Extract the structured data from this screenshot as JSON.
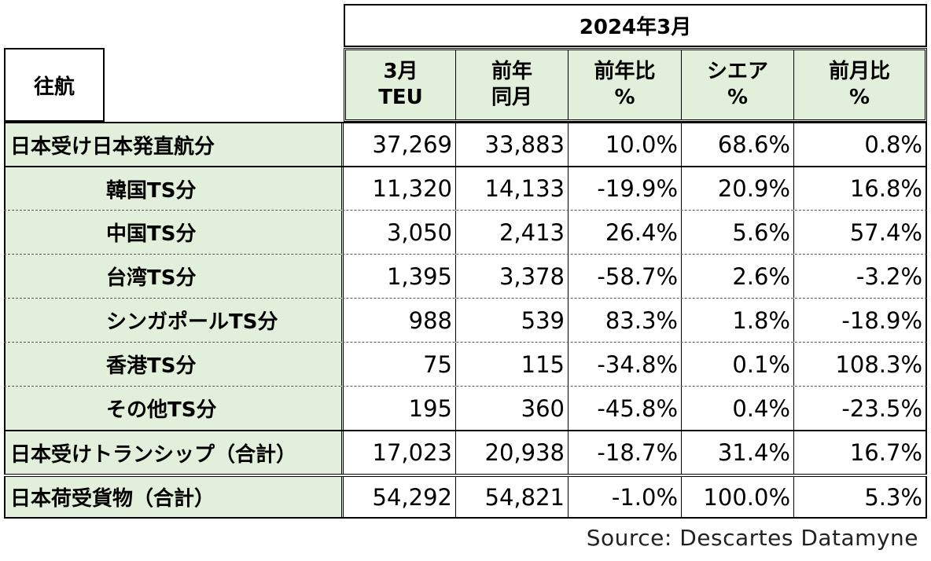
{
  "period": "2024年3月",
  "route_label": "往航",
  "headers": [
    {
      "line1": "3月",
      "line2": "TEU"
    },
    {
      "line1": "前年",
      "line2": "同月"
    },
    {
      "line1": "前年比",
      "line2": "%"
    },
    {
      "line1": "シエア",
      "line2": "%"
    },
    {
      "line1": "前月比",
      "line2": "%"
    }
  ],
  "rows": [
    {
      "label": "日本受け日本発直航分",
      "v": [
        "37,269",
        "33,883",
        "10.0%",
        "68.6%",
        "0.8%"
      ]
    },
    {
      "label": "韓国TS分",
      "v": [
        "11,320",
        "14,133",
        "-19.9%",
        "20.9%",
        "16.8%"
      ]
    },
    {
      "label": "中国TS分",
      "v": [
        "3,050",
        "2,413",
        "26.4%",
        "5.6%",
        "57.4%"
      ]
    },
    {
      "label": "台湾TS分",
      "v": [
        "1,395",
        "3,378",
        "-58.7%",
        "2.6%",
        "-3.2%"
      ]
    },
    {
      "label": "シンガポールTS分",
      "v": [
        "988",
        "539",
        "83.3%",
        "1.8%",
        "-18.9%"
      ]
    },
    {
      "label": "香港TS分",
      "v": [
        "75",
        "115",
        "-34.8%",
        "0.1%",
        "108.3%"
      ]
    },
    {
      "label": "その他TS分",
      "v": [
        "195",
        "360",
        "-45.8%",
        "0.4%",
        "-23.5%"
      ]
    },
    {
      "label": "日本受けトランシップ（合計）",
      "v": [
        "17,023",
        "20,938",
        "-18.7%",
        "31.4%",
        "16.7%"
      ]
    },
    {
      "label": "日本荷受貨物（合計）",
      "v": [
        "54,292",
        "54,821",
        "-1.0%",
        "100.0%",
        "5.3%"
      ]
    }
  ],
  "source": "Source:  Descartes Datamyne"
}
